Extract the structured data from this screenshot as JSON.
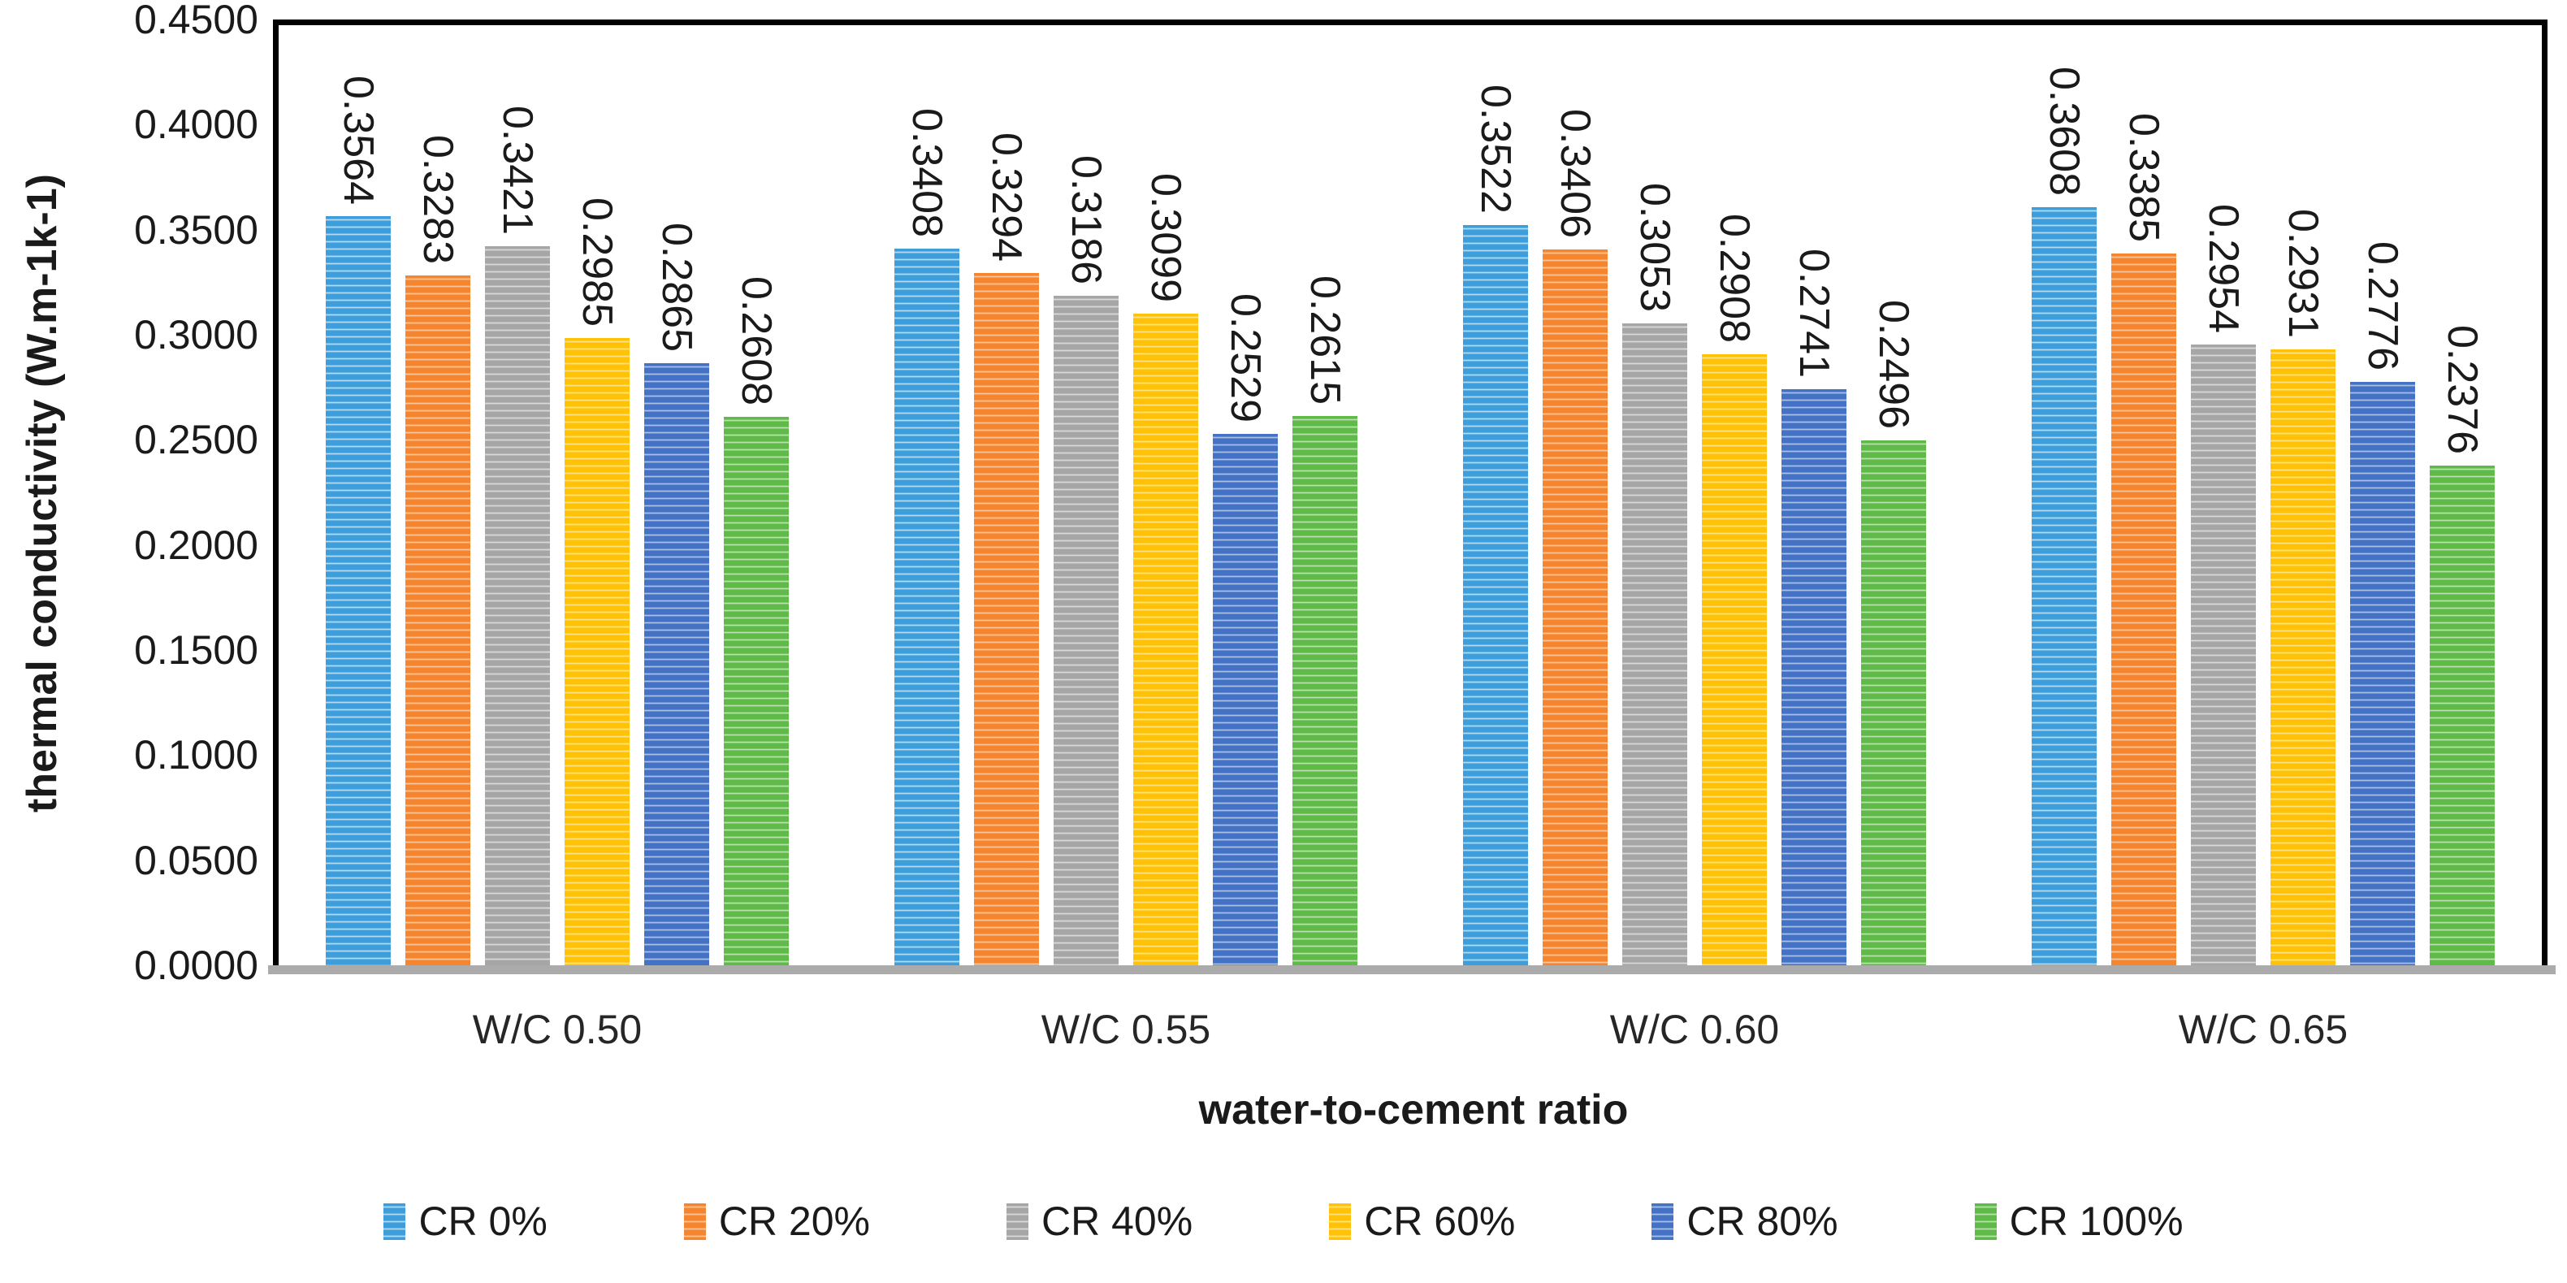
{
  "chart_data": {
    "type": "bar",
    "title": "",
    "xlabel": "water-to-cement ratio",
    "ylabel": "thermal conductivity (W.m-1k-1)",
    "ylim": [
      0,
      0.45
    ],
    "ytick_step": 0.05,
    "yticks": [
      "0.0000",
      "0.0500",
      "0.1000",
      "0.1500",
      "0.2000",
      "0.2500",
      "0.3000",
      "0.3500",
      "0.4000",
      "0.4500"
    ],
    "grid": false,
    "legend_position": "bottom",
    "bar_pattern": "horizontal-stripes",
    "categories": [
      "W/C 0.50",
      "W/C 0.55",
      "W/C 0.60",
      "W/C 0.65"
    ],
    "series": [
      {
        "name": "CR 0%",
        "color": "#3E9EDB",
        "light": "#C9E6F8",
        "values": [
          0.3564,
          0.3408,
          0.3522,
          0.3608
        ]
      },
      {
        "name": "CR 20%",
        "color": "#F6852F",
        "light": "#FCD2AE",
        "values": [
          0.3283,
          0.3294,
          0.3406,
          0.3385
        ]
      },
      {
        "name": "CR 40%",
        "color": "#A6A6A6",
        "light": "#E3E3E3",
        "values": [
          0.3421,
          0.3186,
          0.3053,
          0.2954
        ]
      },
      {
        "name": "CR 60%",
        "color": "#FFC207",
        "light": "#FFE9A0",
        "values": [
          0.2985,
          0.3099,
          0.2908,
          0.2931
        ]
      },
      {
        "name": "CR 80%",
        "color": "#4472C4",
        "light": "#BDCDEC",
        "values": [
          0.2865,
          0.2529,
          0.2741,
          0.2776
        ]
      },
      {
        "name": "CR 100%",
        "color": "#5FBA4A",
        "light": "#C9E8BD",
        "values": [
          0.2608,
          0.2615,
          0.2496,
          0.2376
        ]
      }
    ]
  }
}
